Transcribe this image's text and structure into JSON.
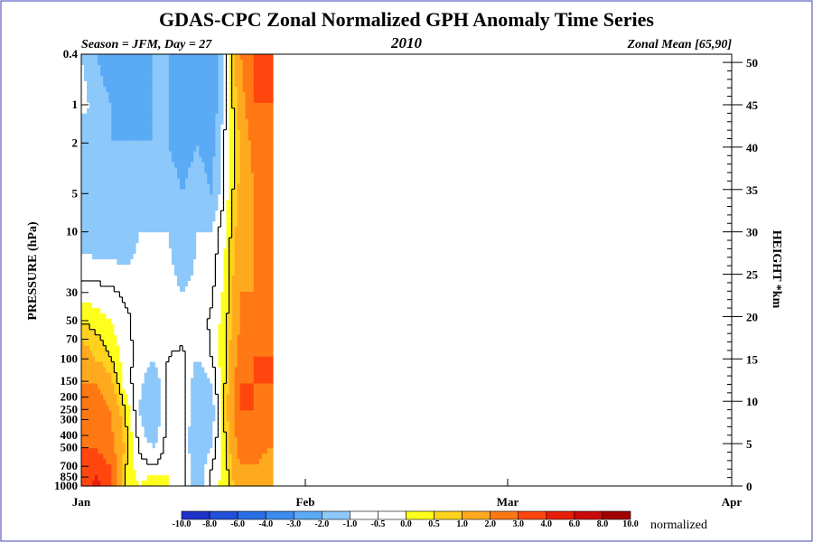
{
  "chart_data": {
    "type": "heatmap",
    "title": "GDAS-CPC Zonal Normalized GPH Anomaly Time Series",
    "subtitle_left": "Season = JFM, Day =  27",
    "subtitle_center": "2010",
    "subtitle_right": "Zonal Mean [65,90]",
    "ylabel_left": "PRESSURE (hPa)",
    "ylabel_right": "HEIGHT *km",
    "x_ticks": [
      "Jan",
      "Feb",
      "Mar",
      "Apr"
    ],
    "pressure_ticks": [
      "0.4",
      "1",
      "2",
      "5",
      "10",
      "30",
      "50",
      "70",
      "100",
      "150",
      "200",
      "250",
      "300",
      "400",
      "500",
      "700",
      "850",
      "1000"
    ],
    "height_ticks": [
      "0",
      "5",
      "10",
      "15",
      "20",
      "25",
      "30",
      "35",
      "40",
      "45",
      "50"
    ],
    "colorbar": {
      "unit": "normalized",
      "labels": [
        "-10.0",
        "-8.0",
        "-6.0",
        "-4.0",
        "-3.0",
        "-2.0",
        "-1.0",
        "-0.5",
        "0.0",
        "0.5",
        "1.0",
        "2.0",
        "3.0",
        "4.0",
        "6.0",
        "8.0",
        "10.0"
      ],
      "colors": [
        "#1e32c8",
        "#2050d8",
        "#2a6ee6",
        "#3c8cf0",
        "#5aaaf5",
        "#8cc8fa",
        "#ffffff",
        "#ffffff",
        "#ffff1e",
        "#ffd21e",
        "#ffaa1e",
        "#ff7814",
        "#ff460f",
        "#e61e0a",
        "#c80a0a",
        "#a00000"
      ]
    },
    "days_shown": 27,
    "days_total": 90,
    "data_columns": [
      {
        "day": 1,
        "v": [
          -1.0,
          -0.5,
          -2.0,
          -2.0,
          -1.5,
          -0.2,
          0.5,
          1.5,
          2.0,
          2.5,
          3.0,
          3.5,
          3.0
        ]
      },
      {
        "day": 3,
        "v": [
          -2.0,
          -1.5,
          -2.0,
          -2.0,
          -1.5,
          -0.3,
          0.3,
          1.0,
          2.0,
          2.5,
          3.0,
          3.5,
          4.5
        ]
      },
      {
        "day": 5,
        "v": [
          -2.5,
          -2.0,
          -2.0,
          -2.0,
          -1.5,
          -0.4,
          0.0,
          0.5,
          1.2,
          2.0,
          2.5,
          3.0,
          3.5
        ]
      },
      {
        "day": 7,
        "v": [
          -3.0,
          -2.5,
          -2.0,
          -2.0,
          -1.5,
          -0.6,
          -0.3,
          -0.2,
          -0.3,
          0.5,
          1.0,
          0.5,
          0.5
        ]
      },
      {
        "day": 9,
        "v": [
          -3.0,
          -2.5,
          -2.0,
          -2.0,
          -1.0,
          -0.8,
          -0.8,
          -0.7,
          -0.8,
          -1.0,
          -0.6,
          -0.3,
          0.0
        ]
      },
      {
        "day": 11,
        "v": [
          -2.0,
          -2.0,
          -2.0,
          -1.5,
          -1.0,
          -1.0,
          -1.0,
          -1.0,
          -1.5,
          -2.0,
          -1.0,
          -0.5,
          0.5
        ]
      },
      {
        "day": 13,
        "v": [
          -2.0,
          -2.0,
          -2.0,
          -1.5,
          -1.0,
          -0.8,
          -0.7,
          -0.5,
          -0.3,
          -0.2,
          -0.3,
          0.0,
          0.0
        ]
      },
      {
        "day": 15,
        "v": [
          -3.0,
          -3.0,
          -2.5,
          -2.0,
          -1.5,
          -1.0,
          -0.7,
          -0.4,
          -0.2,
          0.0,
          -0.2,
          -0.3,
          0.0
        ]
      },
      {
        "day": 17,
        "v": [
          -2.5,
          -2.5,
          -2.0,
          -1.5,
          -1.0,
          -0.9,
          -0.8,
          -1.0,
          -1.5,
          -2.0,
          -2.0,
          -1.5,
          -2.0
        ]
      },
      {
        "day": 19,
        "v": [
          -3.0,
          -3.0,
          -2.5,
          -2.0,
          -1.0,
          -0.6,
          -0.4,
          -0.5,
          -1.0,
          -1.5,
          -1.0,
          -0.5,
          -0.3
        ]
      },
      {
        "day": 21,
        "v": [
          -0.5,
          -0.5,
          -0.3,
          -0.2,
          0.0,
          0.2,
          0.3,
          0.5,
          0.6,
          0.8,
          0.5,
          0.3,
          0.3
        ]
      },
      {
        "day": 23,
        "v": [
          2.0,
          1.5,
          1.0,
          1.2,
          1.5,
          2.0,
          2.0,
          2.5,
          3.0,
          3.0,
          2.5,
          2.0,
          1.5
        ]
      },
      {
        "day": 25,
        "v": [
          3.0,
          3.0,
          2.5,
          2.0,
          2.0,
          2.0,
          2.5,
          3.0,
          3.0,
          3.0,
          2.5,
          2.0,
          1.2
        ]
      },
      {
        "day": 27,
        "v": [
          4.0,
          3.0,
          2.5,
          2.0,
          2.0,
          2.0,
          2.5,
          3.0,
          3.0,
          2.5,
          2.0,
          1.5,
          1.0
        ]
      }
    ],
    "data_levels_hpa": [
      0.4,
      1,
      2,
      5,
      10,
      30,
      50,
      100,
      150,
      250,
      500,
      700,
      1000
    ],
    "grid": false,
    "legend": "bottom"
  }
}
